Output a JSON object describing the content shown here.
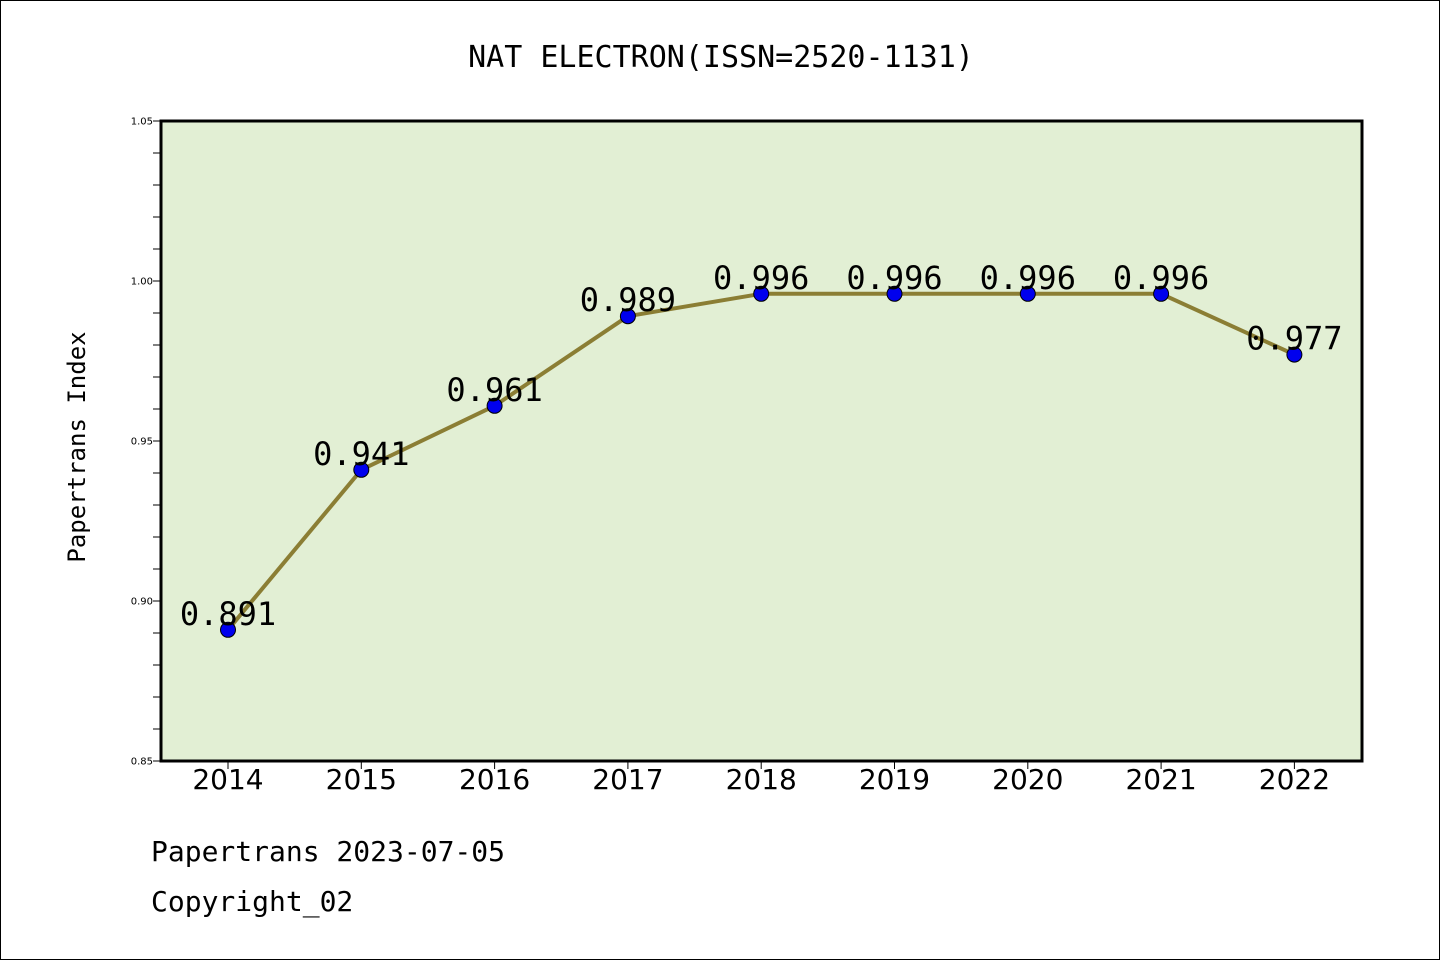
{
  "chart_data": {
    "type": "line",
    "title": "NAT ELECTRON(ISSN=2520-1131)",
    "xlabel": "",
    "ylabel": "Papertrans Index",
    "categories": [
      "2014",
      "2015",
      "2016",
      "2017",
      "2018",
      "2019",
      "2020",
      "2021",
      "2022"
    ],
    "values": [
      0.891,
      0.941,
      0.961,
      0.989,
      0.996,
      0.996,
      0.996,
      0.996,
      0.977
    ],
    "value_labels": [
      "0.891",
      "0.941",
      "0.961",
      "0.989",
      "0.996",
      "0.996",
      "0.996",
      "0.996",
      "0.977"
    ],
    "ylim": [
      0.85,
      1.05
    ],
    "yticks": [
      "0.85",
      "0.90",
      "0.95",
      "1.00",
      "1.05"
    ],
    "grid": false,
    "legend": "none",
    "colors": {
      "plot_background": "#e2efd4",
      "line": "#8b7e34",
      "marker": "#0000ee"
    }
  },
  "footer": {
    "line1": "Papertrans 2023-07-05",
    "line2": "Copyright_02"
  }
}
